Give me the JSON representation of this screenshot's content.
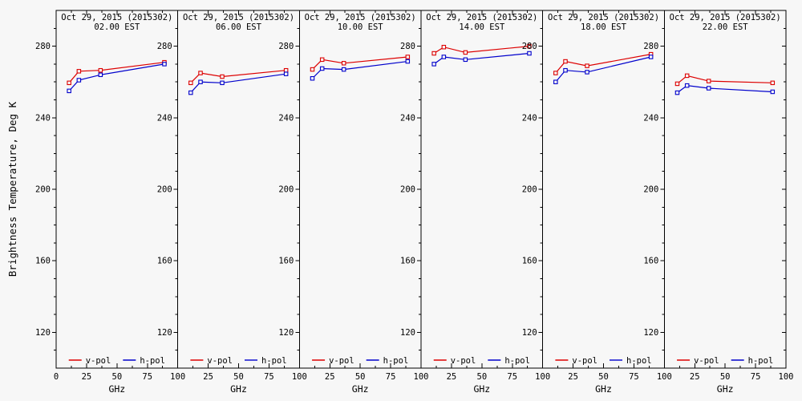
{
  "figure": {
    "background": "#f7f7f7",
    "axis_color": "#000000",
    "ylabel": "Brightness Temperature, Deg K",
    "xlabel": "GHz",
    "legend": [
      {
        "label": "v-pol",
        "color": "#dd0000"
      },
      {
        "label": "h-pol",
        "color": "#0000cc"
      }
    ]
  },
  "chart_data": [
    {
      "type": "line",
      "title": "Oct 29, 2015 (2015302)",
      "subtitle": "02.00 EST",
      "xlabel": "GHz",
      "ylabel": "Brightness Temperature, Deg K",
      "x": [
        10.65,
        18.7,
        36.5,
        89
      ],
      "xlim": [
        0,
        100
      ],
      "ylim": [
        100,
        300
      ],
      "xticks": [
        0,
        25,
        50,
        75,
        100
      ],
      "yticks": [
        120,
        160,
        200,
        240,
        280
      ],
      "series": [
        {
          "name": "v-pol",
          "color": "#dd0000",
          "values": [
            259.5,
            266.0,
            266.5,
            271.0
          ]
        },
        {
          "name": "h-pol",
          "color": "#0000cc",
          "values": [
            255.0,
            261.0,
            264.0,
            270.0
          ]
        }
      ]
    },
    {
      "type": "line",
      "title": "Oct 29, 2015 (2015302)",
      "subtitle": "06.00 EST",
      "xlabel": "GHz",
      "ylabel": "Brightness Temperature, Deg K",
      "x": [
        10.65,
        18.7,
        36.5,
        89
      ],
      "xlim": [
        0,
        100
      ],
      "ylim": [
        100,
        300
      ],
      "xticks": [
        0,
        25,
        50,
        75,
        100
      ],
      "yticks": [
        120,
        160,
        200,
        240,
        280
      ],
      "series": [
        {
          "name": "v-pol",
          "color": "#dd0000",
          "values": [
            259.5,
            265.0,
            263.0,
            266.5
          ]
        },
        {
          "name": "h-pol",
          "color": "#0000cc",
          "values": [
            254.0,
            260.0,
            259.5,
            264.5
          ]
        }
      ]
    },
    {
      "type": "line",
      "title": "Oct 29, 2015 (2015302)",
      "subtitle": "10.00 EST",
      "xlabel": "GHz",
      "ylabel": "Brightness Temperature, Deg K",
      "x": [
        10.65,
        18.7,
        36.5,
        89
      ],
      "xlim": [
        0,
        100
      ],
      "ylim": [
        100,
        300
      ],
      "xticks": [
        0,
        25,
        50,
        75,
        100
      ],
      "yticks": [
        120,
        160,
        200,
        240,
        280
      ],
      "series": [
        {
          "name": "v-pol",
          "color": "#dd0000",
          "values": [
            267.0,
            272.5,
            270.5,
            274.0
          ]
        },
        {
          "name": "h-pol",
          "color": "#0000cc",
          "values": [
            262.0,
            267.5,
            267.0,
            271.5
          ]
        }
      ]
    },
    {
      "type": "line",
      "title": "Oct 29, 2015 (2015302)",
      "subtitle": "14.00 EST",
      "xlabel": "GHz",
      "ylabel": "Brightness Temperature, Deg K",
      "x": [
        10.65,
        18.7,
        36.5,
        89
      ],
      "xlim": [
        0,
        100
      ],
      "ylim": [
        100,
        300
      ],
      "xticks": [
        0,
        25,
        50,
        75,
        100
      ],
      "yticks": [
        120,
        160,
        200,
        240,
        280
      ],
      "series": [
        {
          "name": "v-pol",
          "color": "#dd0000",
          "values": [
            276.0,
            279.5,
            276.5,
            280.0
          ]
        },
        {
          "name": "h-pol",
          "color": "#0000cc",
          "values": [
            270.0,
            274.0,
            272.5,
            276.0
          ]
        }
      ]
    },
    {
      "type": "line",
      "title": "Oct 29, 2015 (2015302)",
      "subtitle": "18.00 EST",
      "xlabel": "GHz",
      "ylabel": "Brightness Temperature, Deg K",
      "x": [
        10.65,
        18.7,
        36.5,
        89
      ],
      "xlim": [
        0,
        100
      ],
      "ylim": [
        100,
        300
      ],
      "xticks": [
        0,
        25,
        50,
        75,
        100
      ],
      "yticks": [
        120,
        160,
        200,
        240,
        280
      ],
      "series": [
        {
          "name": "v-pol",
          "color": "#dd0000",
          "values": [
            265.0,
            271.5,
            269.0,
            275.5
          ]
        },
        {
          "name": "h-pol",
          "color": "#0000cc",
          "values": [
            260.0,
            266.5,
            265.5,
            274.0
          ]
        }
      ]
    },
    {
      "type": "line",
      "title": "Oct 29, 2015 (2015302)",
      "subtitle": "22.00 EST",
      "xlabel": "GHz",
      "ylabel": "Brightness Temperature, Deg K",
      "x": [
        10.65,
        18.7,
        36.5,
        89
      ],
      "xlim": [
        0,
        100
      ],
      "ylim": [
        100,
        300
      ],
      "xticks": [
        0,
        25,
        50,
        75,
        100
      ],
      "yticks": [
        120,
        160,
        200,
        240,
        280
      ],
      "series": [
        {
          "name": "v-pol",
          "color": "#dd0000",
          "values": [
            259.0,
            263.5,
            260.5,
            259.5
          ]
        },
        {
          "name": "h-pol",
          "color": "#0000cc",
          "values": [
            254.0,
            258.0,
            256.5,
            254.5
          ]
        }
      ]
    }
  ]
}
